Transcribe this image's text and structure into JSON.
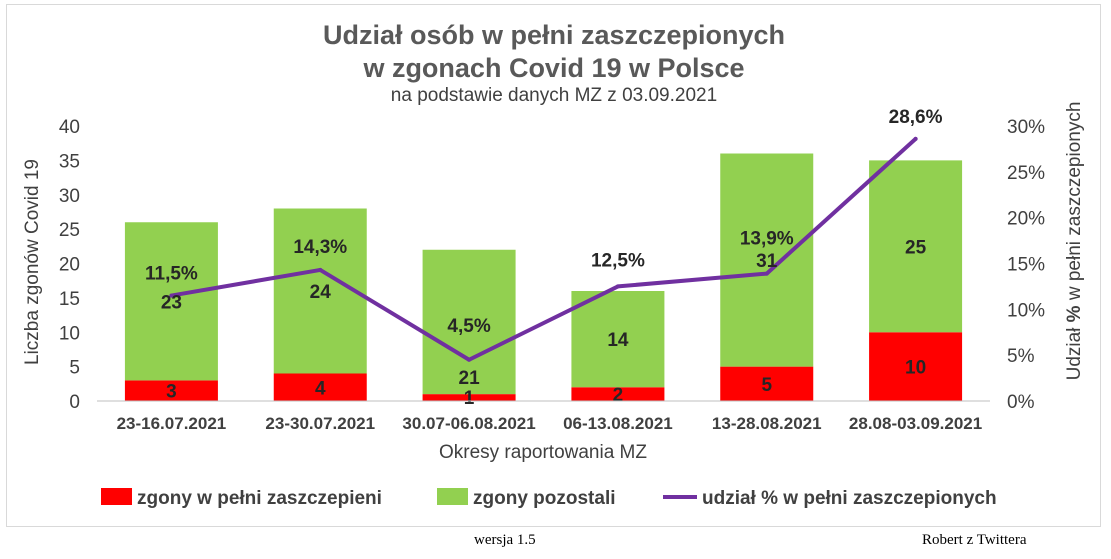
{
  "chart_data": {
    "type": "bar",
    "title": [
      "Udział osób w pełni zaszczepionych",
      "w zgonach Covid 19 w Polsce"
    ],
    "subtitle": "na podstawie danych MZ z 03.09.2021",
    "xlabel": "Okresy raportowania MZ",
    "ylabel": "Liczba zgonów Covid 19",
    "y2label": {
      "prefix": "Udział ",
      "bold": "%",
      "suffix": " w pełni zaszczepionych"
    },
    "categories": [
      "23-16.07.2021",
      "23-30.07.2021",
      "30.07-06.08.2021",
      "06-13.08.2021",
      "13-28.08.2021",
      "28.08-03.09.2021"
    ],
    "ylim": [
      0,
      40
    ],
    "yticks": [
      "0",
      "5",
      "10",
      "15",
      "20",
      "25",
      "30",
      "35",
      "40"
    ],
    "y2lim": [
      0,
      30
    ],
    "y2ticks": [
      "0%",
      "5%",
      "10%",
      "15%",
      "20%",
      "25%",
      "30%"
    ],
    "stacked": true,
    "series": [
      {
        "name": "zgony w pełni zaszczepieni",
        "kind": "bar",
        "color": "#ff0000",
        "values": [
          3,
          4,
          1,
          2,
          5,
          10
        ],
        "labels": [
          "3",
          "4",
          "1",
          "2",
          "5",
          "10"
        ]
      },
      {
        "name": "zgony pozostali",
        "kind": "bar",
        "color": "#92d050",
        "values": [
          23,
          24,
          21,
          14,
          31,
          25
        ],
        "labels": [
          "23",
          "24",
          "21",
          "14",
          "31",
          "25"
        ]
      },
      {
        "name": "udział % w pełni zaszczepionych",
        "kind": "line",
        "axis": "y2",
        "color": "#7030a0",
        "values": [
          11.5,
          14.3,
          4.5,
          12.5,
          13.9,
          28.6
        ],
        "labels": [
          "11,5%",
          "14,3%",
          "4,5%",
          "12,5%",
          "13,9%",
          "28,6%"
        ]
      }
    ],
    "legend_position": "bottom",
    "grid": false
  },
  "footer": {
    "version": "wersja 1.5",
    "author": "Robert z Twittera"
  }
}
